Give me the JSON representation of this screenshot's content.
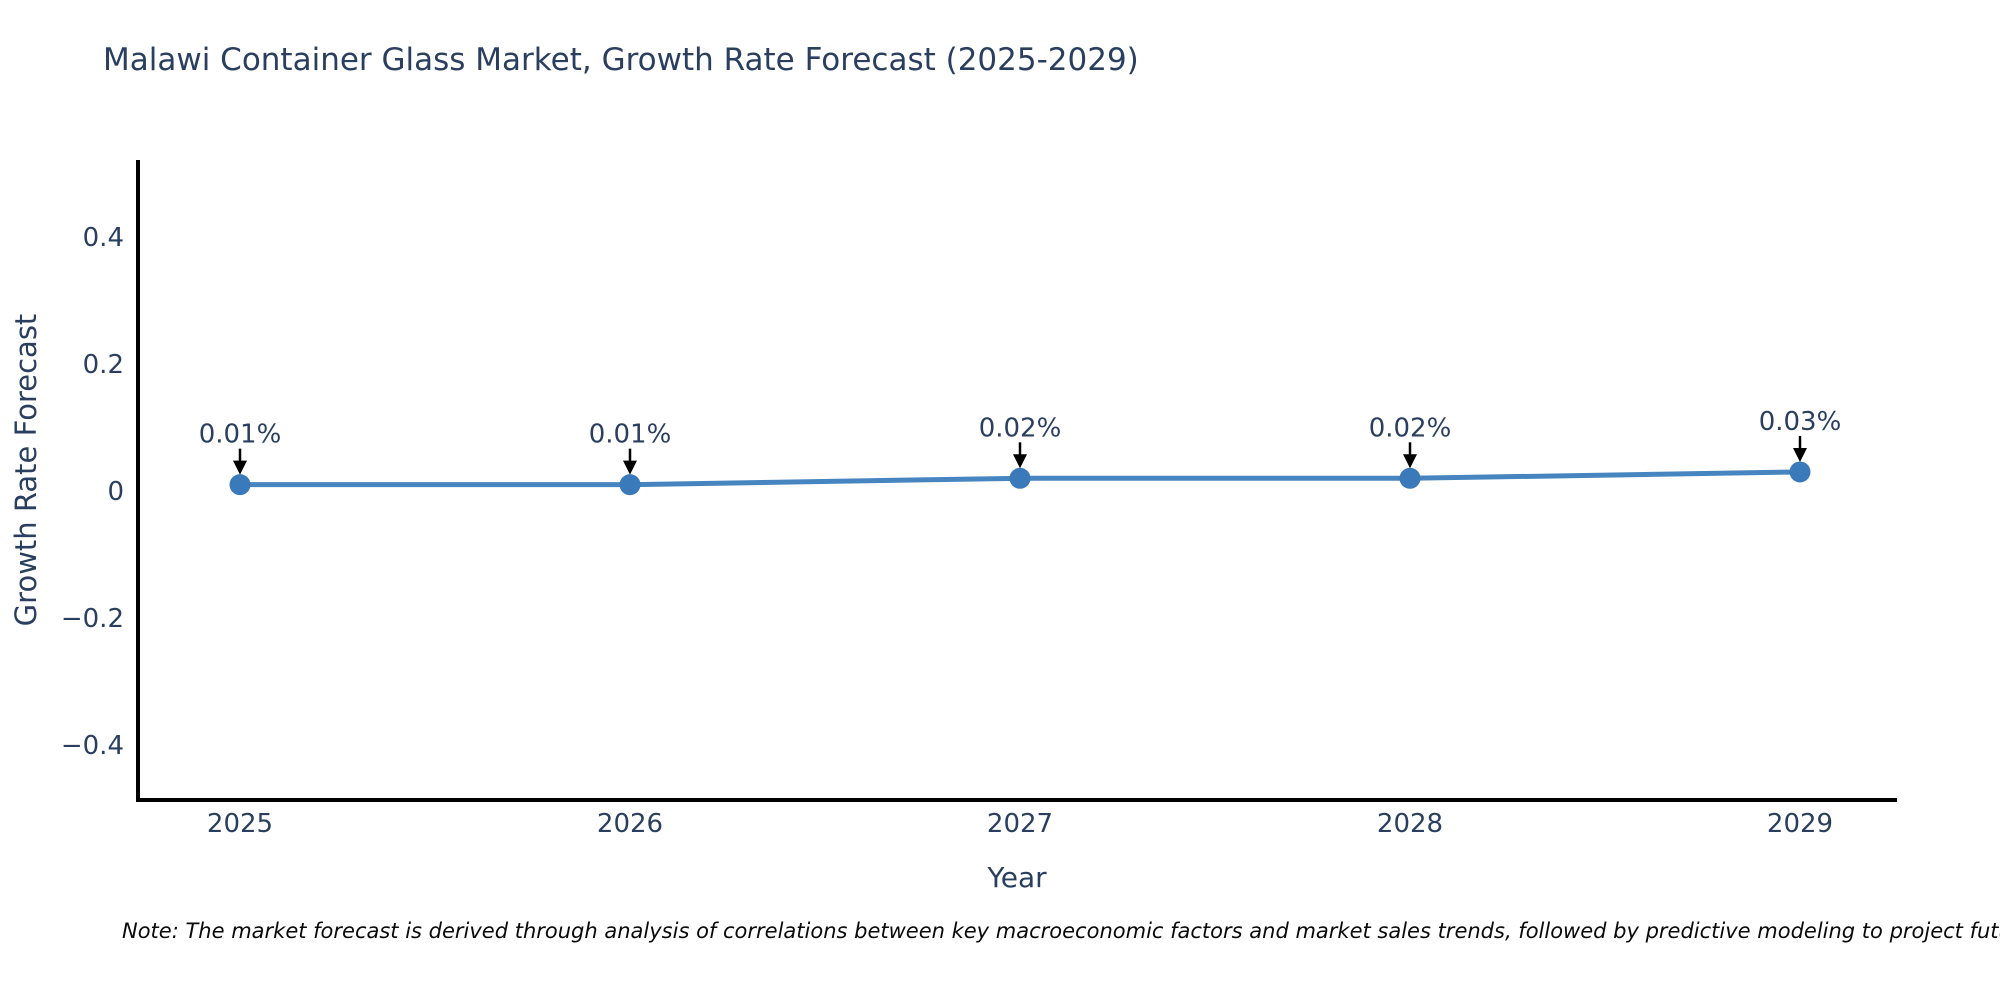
{
  "chart": {
    "title": "Malawi Container Glass Market, Growth Rate Forecast (2025-2029)",
    "xlabel": "Year",
    "ylabel": "Growth Rate Forecast"
  },
  "note": "Note: The market forecast is derived through analysis of correlations between key macroeconomic factors and market sales trends, followed by predictive modeling to project future sales.",
  "colors": {
    "line": "#4685bf",
    "marker": "#3a79ba",
    "axis": "#000000",
    "text": "#2a3f5f",
    "arrow": "#000000"
  },
  "chart_data": {
    "type": "line",
    "title": "Malawi Container Glass Market, Growth Rate Forecast (2025-2029)",
    "xlabel": "Year",
    "ylabel": "Growth Rate Forecast",
    "x": [
      2025,
      2026,
      2027,
      2028,
      2029
    ],
    "values": [
      0.01,
      0.01,
      0.02,
      0.02,
      0.03
    ],
    "point_labels": [
      "0.01%",
      "0.01%",
      "0.02%",
      "0.02%",
      "0.03%"
    ],
    "yticks": [
      {
        "value": 0.4,
        "label": "0.4"
      },
      {
        "value": 0.2,
        "label": "0.2"
      },
      {
        "value": 0,
        "label": "0"
      },
      {
        "value": -0.2,
        "label": "−0.2"
      },
      {
        "value": -0.4,
        "label": "−0.4"
      }
    ],
    "ylim": [
      -0.49,
      0.52
    ],
    "grid": false,
    "legend": false,
    "annotations_have_arrows": true
  }
}
